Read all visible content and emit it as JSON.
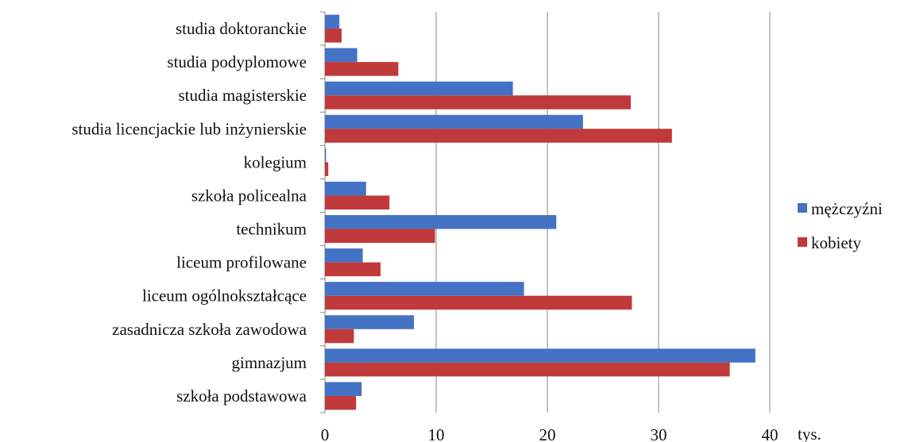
{
  "chart_data": {
    "type": "bar",
    "orientation": "horizontal",
    "categories": [
      "studia doktoranckie",
      "studia podyplomowe",
      "studia magisterskie",
      "studia licencjackie lub inżynierskie",
      "kolegium",
      "szkoła policealna",
      "technikum",
      "liceum profilowane",
      "liceum ogólnokształcące",
      "zasadnicza szkoła zawodowa",
      "gimnazjum",
      "szkoła podstawowa"
    ],
    "series": [
      {
        "name": "mężczyźni",
        "color": "#4472c4",
        "values": [
          1.3,
          2.9,
          16.9,
          23.2,
          0.1,
          3.7,
          20.8,
          3.4,
          17.9,
          8.0,
          38.7,
          3.3
        ]
      },
      {
        "name": "kobiety",
        "color": "#c0393b",
        "values": [
          1.5,
          6.6,
          27.5,
          31.2,
          0.3,
          5.8,
          9.9,
          5.0,
          27.6,
          2.6,
          36.4,
          2.8
        ]
      }
    ],
    "xlim": [
      0,
      40
    ],
    "xticks": [
      0,
      10,
      20,
      30,
      40
    ],
    "xunit": "tys.",
    "grid": "vertical",
    "legend_position": "right"
  }
}
